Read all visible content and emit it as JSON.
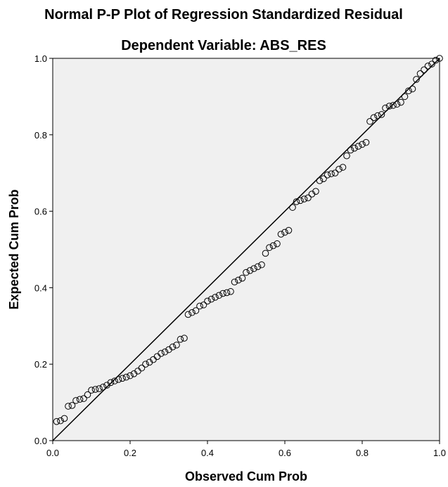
{
  "chart_data": {
    "type": "scatter",
    "title": "Normal P-P Plot of Regression Standardized Residual",
    "subtitle": "Dependent Variable: ABS_RES",
    "xlabel": "Observed Cum Prob",
    "ylabel": "Expected Cum Prob",
    "xlim": [
      0,
      1
    ],
    "ylim": [
      0,
      1
    ],
    "xticks": [
      "0.0",
      "0.2",
      "0.4",
      "0.6",
      "0.8",
      "1.0"
    ],
    "yticks": [
      "0.0",
      "0.2",
      "0.4",
      "0.6",
      "0.8",
      "1.0"
    ],
    "grid": false,
    "legend": "none",
    "reference_line": {
      "from": [
        0,
        0
      ],
      "to": [
        1,
        1
      ]
    },
    "plot_background": "#f0f0f0",
    "marker": "open-circle",
    "points": [
      [
        0.01,
        0.05
      ],
      [
        0.02,
        0.052
      ],
      [
        0.03,
        0.058
      ],
      [
        0.04,
        0.09
      ],
      [
        0.05,
        0.092
      ],
      [
        0.06,
        0.105
      ],
      [
        0.07,
        0.108
      ],
      [
        0.08,
        0.11
      ],
      [
        0.09,
        0.12
      ],
      [
        0.1,
        0.132
      ],
      [
        0.11,
        0.134
      ],
      [
        0.12,
        0.136
      ],
      [
        0.13,
        0.14
      ],
      [
        0.14,
        0.145
      ],
      [
        0.15,
        0.152
      ],
      [
        0.16,
        0.156
      ],
      [
        0.17,
        0.16
      ],
      [
        0.18,
        0.163
      ],
      [
        0.19,
        0.166
      ],
      [
        0.2,
        0.17
      ],
      [
        0.21,
        0.175
      ],
      [
        0.22,
        0.182
      ],
      [
        0.23,
        0.19
      ],
      [
        0.24,
        0.2
      ],
      [
        0.25,
        0.205
      ],
      [
        0.26,
        0.212
      ],
      [
        0.27,
        0.22
      ],
      [
        0.28,
        0.228
      ],
      [
        0.29,
        0.232
      ],
      [
        0.3,
        0.238
      ],
      [
        0.31,
        0.245
      ],
      [
        0.32,
        0.25
      ],
      [
        0.33,
        0.265
      ],
      [
        0.34,
        0.268
      ],
      [
        0.35,
        0.33
      ],
      [
        0.36,
        0.335
      ],
      [
        0.37,
        0.34
      ],
      [
        0.38,
        0.352
      ],
      [
        0.39,
        0.355
      ],
      [
        0.4,
        0.365
      ],
      [
        0.41,
        0.37
      ],
      [
        0.42,
        0.375
      ],
      [
        0.43,
        0.38
      ],
      [
        0.44,
        0.385
      ],
      [
        0.45,
        0.387
      ],
      [
        0.46,
        0.39
      ],
      [
        0.47,
        0.415
      ],
      [
        0.48,
        0.42
      ],
      [
        0.49,
        0.425
      ],
      [
        0.5,
        0.44
      ],
      [
        0.51,
        0.445
      ],
      [
        0.52,
        0.45
      ],
      [
        0.53,
        0.455
      ],
      [
        0.54,
        0.46
      ],
      [
        0.55,
        0.49
      ],
      [
        0.56,
        0.505
      ],
      [
        0.57,
        0.51
      ],
      [
        0.58,
        0.515
      ],
      [
        0.59,
        0.54
      ],
      [
        0.6,
        0.545
      ],
      [
        0.61,
        0.55
      ],
      [
        0.62,
        0.61
      ],
      [
        0.63,
        0.625
      ],
      [
        0.64,
        0.628
      ],
      [
        0.65,
        0.632
      ],
      [
        0.66,
        0.635
      ],
      [
        0.67,
        0.645
      ],
      [
        0.68,
        0.652
      ],
      [
        0.69,
        0.68
      ],
      [
        0.7,
        0.685
      ],
      [
        0.71,
        0.695
      ],
      [
        0.72,
        0.698
      ],
      [
        0.73,
        0.7
      ],
      [
        0.74,
        0.71
      ],
      [
        0.75,
        0.715
      ],
      [
        0.76,
        0.745
      ],
      [
        0.77,
        0.76
      ],
      [
        0.78,
        0.765
      ],
      [
        0.79,
        0.77
      ],
      [
        0.8,
        0.775
      ],
      [
        0.81,
        0.78
      ],
      [
        0.82,
        0.835
      ],
      [
        0.83,
        0.845
      ],
      [
        0.84,
        0.85
      ],
      [
        0.85,
        0.853
      ],
      [
        0.86,
        0.87
      ],
      [
        0.87,
        0.875
      ],
      [
        0.88,
        0.877
      ],
      [
        0.89,
        0.88
      ],
      [
        0.9,
        0.885
      ],
      [
        0.91,
        0.9
      ],
      [
        0.92,
        0.915
      ],
      [
        0.93,
        0.92
      ],
      [
        0.94,
        0.945
      ],
      [
        0.95,
        0.96
      ],
      [
        0.96,
        0.97
      ],
      [
        0.97,
        0.98
      ],
      [
        0.98,
        0.985
      ],
      [
        0.99,
        0.995
      ],
      [
        1.0,
        1.0
      ]
    ]
  }
}
